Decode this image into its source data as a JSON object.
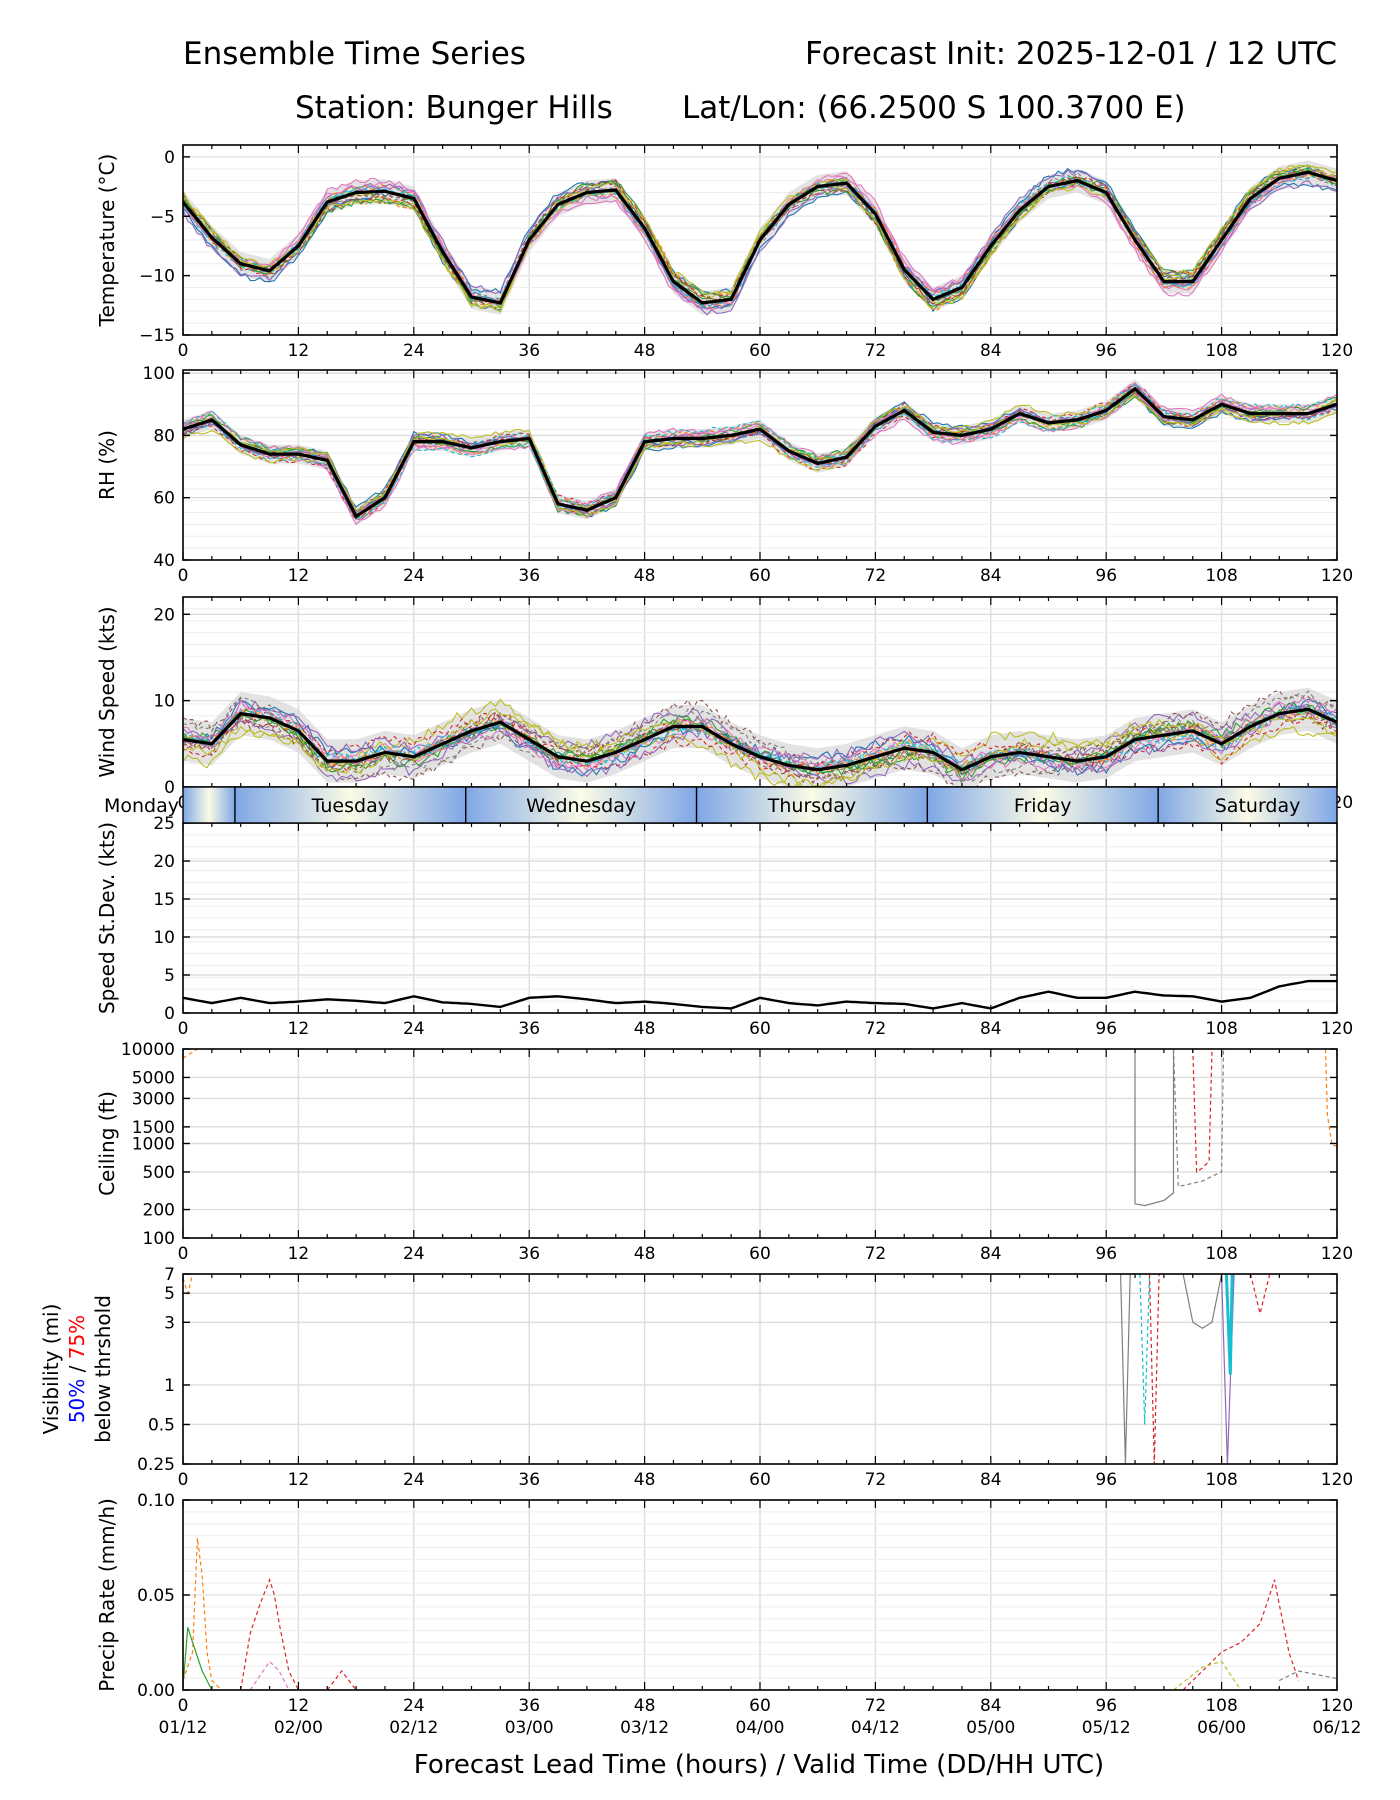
{
  "header": {
    "title_left": "Ensemble Time Series",
    "title_right": "Forecast Init: 2025-12-01 / 12 UTC",
    "station": "Station: Bunger Hills",
    "latlon": "Lat/Lon: (66.2500 S 100.3700 E)"
  },
  "colors": {
    "members": [
      "#1f77b4",
      "#ff7f0e",
      "#2ca02c",
      "#d62728",
      "#9467bd",
      "#8c564b",
      "#e377c2",
      "#7f7f7f",
      "#bcbd22",
      "#17becf"
    ],
    "mean": "#000000",
    "grid": "#dddddd",
    "spread": "#d0d0d0",
    "band_blue": "#7fa7e6",
    "band_cream": "#fbfbe6",
    "vis_50": "#0000ff",
    "vis_75": "#ff0000"
  },
  "xaxis": {
    "label": "Forecast Lead Time (hours) / Valid Time (DD/HH UTC)",
    "ticks": [
      "0",
      "12",
      "24",
      "36",
      "48",
      "60",
      "72",
      "84",
      "96",
      "108",
      "120"
    ],
    "valid_times": [
      "01/12",
      "02/00",
      "02/12",
      "03/00",
      "03/12",
      "04/00",
      "04/12",
      "05/00",
      "05/12",
      "06/00",
      "06/12"
    ]
  },
  "days": [
    "Monday",
    "Tuesday",
    "Wednesday",
    "Thursday",
    "Friday",
    "Saturday"
  ],
  "vis_label": {
    "part1": "Visibility (mi)",
    "p50": "50%",
    "slash": " / ",
    "p75": "75%",
    "part3": "below thrshold"
  },
  "chart_data": [
    {
      "id": "temp",
      "type": "line",
      "ylabel": "Temperature (°C)",
      "ylim": [
        -15,
        1
      ],
      "yticks": [
        0,
        -5,
        -10,
        -15
      ],
      "yticklabels": [
        "0",
        "−5",
        "−10",
        "−15"
      ],
      "x": [
        0,
        3,
        6,
        9,
        12,
        15,
        18,
        21,
        24,
        27,
        30,
        33,
        36,
        39,
        42,
        45,
        48,
        51,
        54,
        57,
        60,
        63,
        66,
        69,
        72,
        75,
        78,
        81,
        84,
        87,
        90,
        93,
        96,
        99,
        102,
        105,
        108,
        111,
        114,
        117,
        120
      ],
      "mean": [
        -3.8,
        -6.8,
        -9.0,
        -9.6,
        -7.5,
        -3.8,
        -3.0,
        -2.9,
        -3.5,
        -8.0,
        -11.8,
        -12.3,
        -7.0,
        -4.0,
        -3.0,
        -2.8,
        -6.0,
        -10.5,
        -12.3,
        -12.0,
        -7.0,
        -4.0,
        -2.5,
        -2.2,
        -4.8,
        -9.5,
        -12.0,
        -11.0,
        -7.5,
        -4.5,
        -2.5,
        -2.0,
        -3.0,
        -7.0,
        -10.5,
        -10.5,
        -7.0,
        -3.5,
        -1.8,
        -1.3,
        -2.0
      ],
      "spread": 1.0
    },
    {
      "id": "rh",
      "type": "line",
      "ylabel": "RH (%)",
      "ylim": [
        40,
        101
      ],
      "yticks": [
        100,
        80,
        60,
        40
      ],
      "yticklabels": [
        "100",
        "80",
        "60",
        "40"
      ],
      "x": [
        0,
        3,
        6,
        9,
        12,
        15,
        18,
        21,
        24,
        27,
        30,
        33,
        36,
        39,
        42,
        45,
        48,
        51,
        54,
        57,
        60,
        63,
        66,
        69,
        72,
        75,
        78,
        81,
        84,
        87,
        90,
        93,
        96,
        99,
        102,
        105,
        108,
        111,
        114,
        117,
        120
      ],
      "mean": [
        82,
        85,
        77,
        74,
        74,
        72,
        54,
        60,
        78,
        78,
        76,
        78,
        79,
        58,
        56,
        60,
        78,
        79,
        79,
        80,
        82,
        75,
        71,
        73,
        83,
        88,
        81,
        80,
        82,
        87,
        84,
        85,
        88,
        95,
        86,
        85,
        90,
        87,
        87,
        87,
        90
      ],
      "spread": 3.0
    },
    {
      "id": "wind",
      "type": "line",
      "ylabel": "Wind Speed (kts)",
      "ylim": [
        0,
        22
      ],
      "yticks": [
        0,
        10,
        20
      ],
      "yticklabels": [
        "0",
        "10",
        "20"
      ],
      "x": [
        0,
        3,
        6,
        9,
        12,
        15,
        18,
        21,
        24,
        27,
        30,
        33,
        36,
        39,
        42,
        45,
        48,
        51,
        54,
        57,
        60,
        63,
        66,
        69,
        72,
        75,
        78,
        81,
        84,
        87,
        90,
        93,
        96,
        99,
        102,
        105,
        108,
        111,
        114,
        117,
        120
      ],
      "mean": [
        5.5,
        5.0,
        8.5,
        8.0,
        6.5,
        3.0,
        3.0,
        4.0,
        3.5,
        5.0,
        6.5,
        7.5,
        5.5,
        3.5,
        3.0,
        4.0,
        5.5,
        7.0,
        7.0,
        5.0,
        3.5,
        2.5,
        2.0,
        2.5,
        3.5,
        4.5,
        4.0,
        2.0,
        3.5,
        4.0,
        3.5,
        3.0,
        3.5,
        5.5,
        6.0,
        6.5,
        5.0,
        7.0,
        8.5,
        9.0,
        7.5
      ],
      "spread": 2.5
    },
    {
      "id": "sdev",
      "type": "line",
      "ylabel": "Speed St.Dev. (kts)",
      "ylim": [
        0,
        25
      ],
      "yticks": [
        0,
        5,
        10,
        15,
        20,
        25
      ],
      "yticklabels": [
        "0",
        "5",
        "10",
        "15",
        "20",
        "25"
      ],
      "x": [
        0,
        3,
        6,
        9,
        12,
        15,
        18,
        21,
        24,
        27,
        30,
        33,
        36,
        39,
        42,
        45,
        48,
        51,
        54,
        57,
        60,
        63,
        66,
        69,
        72,
        75,
        78,
        81,
        84,
        87,
        90,
        93,
        96,
        99,
        102,
        105,
        108,
        111,
        114,
        117,
        120
      ],
      "mean": [
        2.0,
        1.3,
        2.0,
        1.3,
        1.5,
        1.8,
        1.6,
        1.3,
        2.2,
        1.4,
        1.2,
        0.8,
        2.0,
        2.2,
        1.8,
        1.3,
        1.5,
        1.2,
        0.8,
        0.6,
        2.0,
        1.3,
        1.0,
        1.5,
        1.3,
        1.2,
        0.6,
        1.3,
        0.6,
        2.0,
        2.8,
        2.0,
        2.0,
        2.8,
        2.3,
        2.2,
        1.5,
        2.0,
        3.5,
        4.2,
        4.2
      ]
    },
    {
      "id": "ceil",
      "type": "line",
      "ylabel": "Ceiling (ft)",
      "yscale": "log",
      "ylim": [
        100,
        10000
      ],
      "yticks": [
        10000,
        5000,
        3000,
        1500,
        1000,
        500,
        200,
        100
      ],
      "yticklabels": [
        "10000",
        "5000",
        "3000",
        "1500",
        "1000",
        "500",
        "200",
        "100"
      ],
      "series": [
        {
          "name": "member-gray-solid",
          "x": [
            99,
            99,
            100,
            102,
            103,
            103
          ],
          "y": [
            10000,
            230,
            220,
            250,
            300,
            10000
          ]
        },
        {
          "name": "member-gray-dashed",
          "x": [
            103,
            103.5,
            106,
            107,
            108,
            108.2
          ],
          "y": [
            10000,
            350,
            400,
            450,
            500,
            10000
          ]
        },
        {
          "name": "member-red-dashed",
          "x": [
            105,
            105.4,
            106,
            106.7,
            107
          ],
          "y": [
            10000,
            500,
            550,
            650,
            10000
          ]
        },
        {
          "name": "member-orange-dashed",
          "x": [
            0,
            1.5
          ],
          "y": [
            8000,
            10000
          ]
        },
        {
          "name": "member-orange-dashed-end",
          "x": [
            118.8,
            119,
            119.5,
            120
          ],
          "y": [
            10000,
            2000,
            950,
            950
          ]
        }
      ]
    },
    {
      "id": "vis",
      "type": "line",
      "ylabel": "Visibility (mi)",
      "yscale": "log",
      "ylim": [
        0.25,
        7
      ],
      "yticks": [
        7,
        5,
        3,
        1,
        0.5,
        0.25
      ],
      "yticklabels": [
        "7",
        "5",
        "3",
        "1",
        "0.5",
        "0.25"
      ],
      "series": [
        {
          "name": "member-gray-solid",
          "x": [
            97.5,
            98,
            98.5
          ],
          "y": [
            7,
            0.25,
            7
          ]
        },
        {
          "name": "member-cyan-dashed",
          "x": [
            99.5,
            100,
            100.5
          ],
          "y": [
            7,
            0.5,
            7
          ]
        },
        {
          "name": "member-red-dashed",
          "x": [
            100.5,
            101,
            101.5
          ],
          "y": [
            7,
            0.25,
            7
          ]
        },
        {
          "name": "member-gray-hump",
          "x": [
            104,
            105,
            106,
            107,
            108
          ],
          "y": [
            7,
            3.0,
            2.7,
            3.0,
            7
          ]
        },
        {
          "name": "member-purple-solid",
          "x": [
            108,
            108.6,
            109.3
          ],
          "y": [
            7,
            0.25,
            7
          ]
        },
        {
          "name": "member-cyan-solid",
          "x": [
            108.5,
            108.9,
            109.1
          ],
          "y": [
            7,
            1.2,
            7
          ]
        },
        {
          "name": "member-red-dashed-b",
          "x": [
            111,
            112,
            113
          ],
          "y": [
            7,
            3.5,
            7
          ]
        },
        {
          "name": "member-orange-dashed",
          "x": [
            0,
            0.5,
            1.0
          ],
          "y": [
            6.5,
            5.0,
            7
          ]
        }
      ]
    },
    {
      "id": "precip",
      "type": "line",
      "ylabel": "Precip Rate (mm/h)",
      "ylim": [
        0,
        0.1
      ],
      "yticks": [
        0.1,
        0.05,
        0.0
      ],
      "yticklabels": [
        "0.10",
        "0.05",
        "0.00"
      ],
      "series": [
        {
          "name": "member-orange-dashed",
          "x": [
            0,
            1,
            1.5,
            2,
            2.5,
            3,
            4
          ],
          "y": [
            0.005,
            0.02,
            0.08,
            0.06,
            0.02,
            0.005,
            0
          ]
        },
        {
          "name": "member-green-solid",
          "x": [
            0,
            0.5,
            1,
            2,
            3
          ],
          "y": [
            0.002,
            0.033,
            0.025,
            0.01,
            0
          ]
        },
        {
          "name": "member-red-dashed",
          "x": [
            6,
            7,
            8,
            9,
            9.5,
            10,
            11,
            12
          ],
          "y": [
            0,
            0.03,
            0.045,
            0.058,
            0.05,
            0.035,
            0.01,
            0
          ]
        },
        {
          "name": "member-pink-dashed",
          "x": [
            7,
            9,
            10,
            11
          ],
          "y": [
            0,
            0.015,
            0.01,
            0
          ]
        },
        {
          "name": "member-red-dashed-b",
          "x": [
            15,
            16.5,
            18
          ],
          "y": [
            0,
            0.01,
            0
          ]
        },
        {
          "name": "member-red-dashed-c",
          "x": [
            104,
            106,
            108,
            110,
            111,
            112,
            113,
            113.5,
            114,
            115,
            116
          ],
          "y": [
            0,
            0.01,
            0.02,
            0.025,
            0.03,
            0.035,
            0.05,
            0.058,
            0.045,
            0.02,
            0.005
          ]
        },
        {
          "name": "member-olive-dashed",
          "x": [
            103,
            106,
            108,
            110
          ],
          "y": [
            0,
            0.012,
            0.015,
            0
          ]
        },
        {
          "name": "member-gray-dashed",
          "x": [
            114,
            116,
            118,
            120
          ],
          "y": [
            0.005,
            0.01,
            0.008,
            0.006
          ]
        }
      ]
    }
  ]
}
